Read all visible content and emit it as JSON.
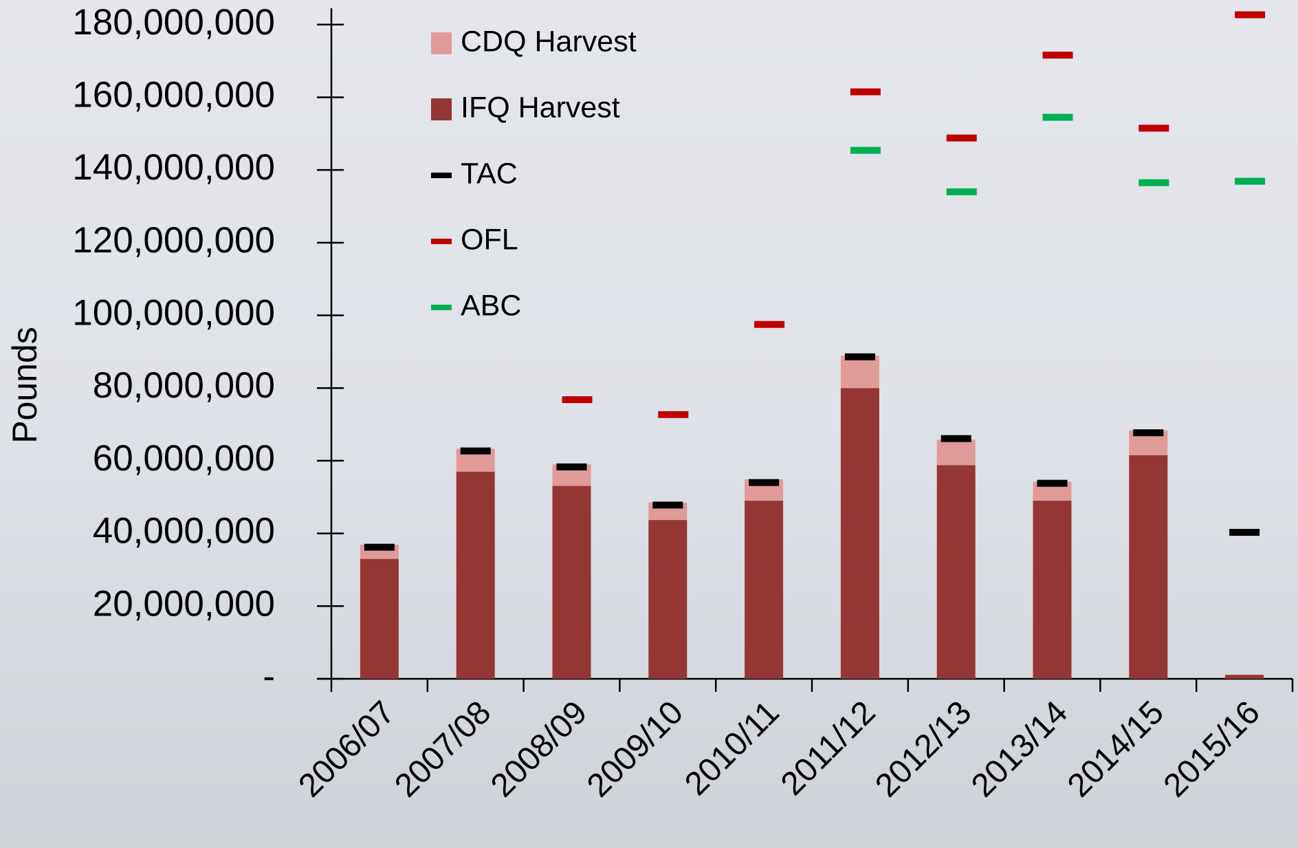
{
  "chart_data": {
    "type": "bar",
    "y_label": "Pounds",
    "categories": [
      "2006/07",
      "2007/08",
      "2008/09",
      "2009/10",
      "2010/11",
      "2011/12",
      "2012/13",
      "2013/14",
      "2014/15",
      "2015/16"
    ],
    "series": [
      {
        "name": "CDQ Harvest",
        "type": "bar",
        "color": "#e09a98",
        "values": [
          3900000,
          6300000,
          5900000,
          4800000,
          5900000,
          8900000,
          7000000,
          5200000,
          6900000,
          null
        ]
      },
      {
        "name": "IFQ Harvest",
        "type": "bar",
        "color": "#943634",
        "values": [
          33000000,
          57000000,
          53100000,
          43700000,
          49000000,
          80000000,
          58800000,
          49000000,
          61500000,
          1100000
        ]
      },
      {
        "name": "TAC",
        "type": "marker",
        "color": "#000000",
        "values": [
          36200000,
          62700000,
          58300000,
          47800000,
          54000000,
          88600000,
          66100000,
          53800000,
          67700000,
          40300000
        ]
      },
      {
        "name": "OFL",
        "type": "marker",
        "color": "#c00000",
        "values": [
          null,
          null,
          76800000,
          72700000,
          97500000,
          161500000,
          148800000,
          171600000,
          151500000,
          182700000
        ]
      },
      {
        "name": "ABC",
        "type": "marker",
        "color": "#00b050",
        "values": [
          null,
          null,
          null,
          null,
          null,
          145400000,
          134000000,
          154500000,
          136500000,
          136900000
        ]
      }
    ],
    "ylim": [
      0,
      184500000
    ],
    "yticks": [
      {
        "value": 0,
        "label": "-"
      },
      {
        "value": 20000000,
        "label": "20,000,000"
      },
      {
        "value": 40000000,
        "label": "40,000,000"
      },
      {
        "value": 60000000,
        "label": "60,000,000"
      },
      {
        "value": 80000000,
        "label": "80,000,000"
      },
      {
        "value": 100000000,
        "label": "100,000,000"
      },
      {
        "value": 120000000,
        "label": "120,000,000"
      },
      {
        "value": 140000000,
        "label": "140,000,000"
      },
      {
        "value": 160000000,
        "label": "160,000,000"
      },
      {
        "value": 180000000,
        "label": "180,000,000"
      }
    ],
    "grid": false
  }
}
